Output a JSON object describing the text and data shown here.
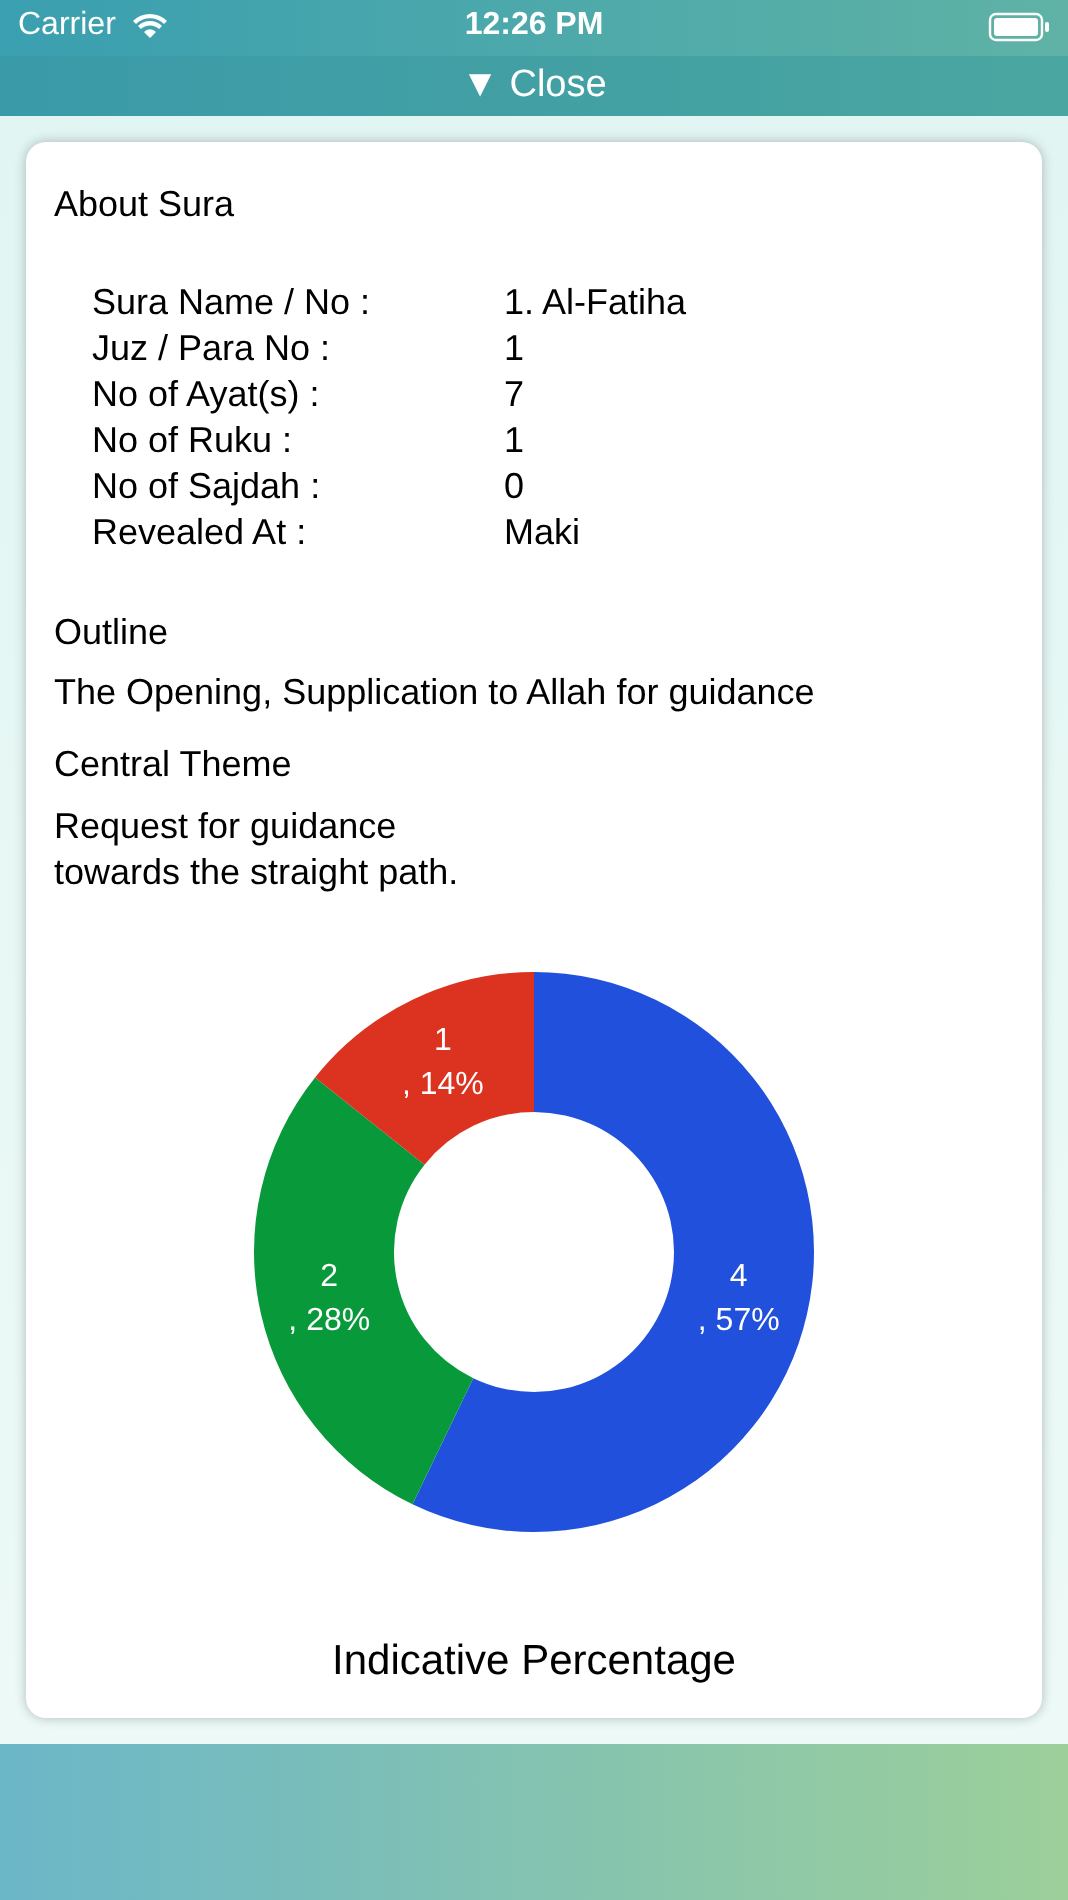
{
  "chart_data": {
    "type": "donut",
    "title": "Indicative Percentage",
    "categories": [
      null,
      null,
      null
    ],
    "values": [
      4,
      2,
      1
    ],
    "colors": [
      "#2050dc",
      "#089a3a",
      "#dc3220"
    ],
    "value_labels": [
      "4\n, 57%",
      "2\n, 28%",
      "1\n, 14%"
    ],
    "legend": false,
    "annotations": [
      "Carrier",
      "12:26 PM",
      "▼ Close",
      "About Sura",
      "Sura Name / No :",
      "1. Al-Fatiha",
      "Juz / Para No :",
      "1",
      "No of Ayat(s) :",
      "7",
      "No of Ruku :",
      "1",
      "No of Sajdah :",
      "0",
      "Revealed At :",
      "Maki",
      "Outline",
      "The Opening, Supplication to Allah for guidance",
      "Central Theme",
      "Request for guidance\ntowards the straight path."
    ]
  }
}
